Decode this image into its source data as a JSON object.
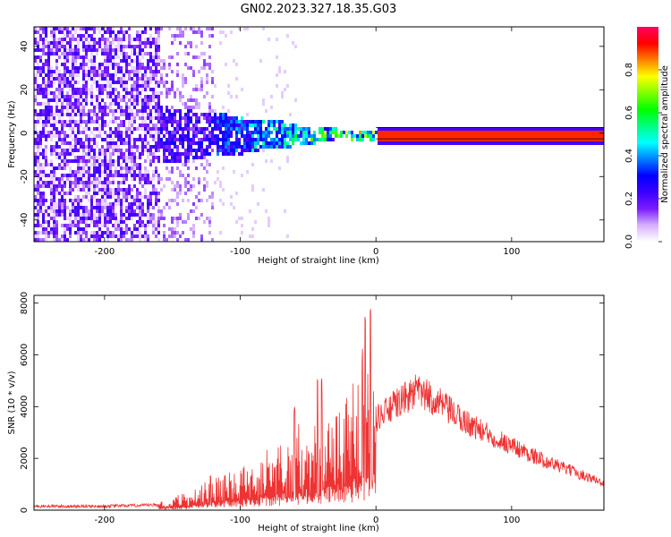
{
  "title": "GN02.2023.327.18.35.G03",
  "chart_data": [
    {
      "type": "heatmap",
      "xlabel": "Height of straight line (km)",
      "ylabel": "Frequency (Hz)",
      "xlim": [
        -252,
        168
      ],
      "ylim": [
        -50,
        49
      ],
      "xticks": [
        -200,
        -100,
        0,
        100
      ],
      "yticks": [
        -40,
        -20,
        0,
        20,
        40
      ],
      "colorbar": {
        "label": "Normalized spectral amplitude",
        "range": [
          0,
          1
        ],
        "ticks": [
          "0.0",
          "0.2",
          "0.4",
          "0.6",
          "0.8"
        ],
        "colormap": [
          "#ffffff",
          "#d6b0ff",
          "#7a1bff",
          "#3a00ff",
          "#0000ff",
          "#0080ff",
          "#00ffff",
          "#00ff80",
          "#00ff00",
          "#80ff00",
          "#ffff00",
          "#ff8000",
          "#ff0000",
          "#ff0060"
        ]
      },
      "signal": {
        "stable_line_start_km": 0,
        "stable_line_freq_hz": 0,
        "stable_line_amplitude": 0.9,
        "noisy_region_start_km": -252,
        "dense_noise_end_km": -160
      }
    },
    {
      "type": "line",
      "xlabel": "Height of straight line (km)",
      "ylabel": "SNR (10 * v/v)",
      "xlim": [
        -252,
        168
      ],
      "ylim": [
        0,
        8300
      ],
      "xticks": [
        -200,
        -100,
        0,
        100
      ],
      "yticks": [
        0,
        2000,
        4000,
        6000,
        8000
      ],
      "series": [
        {
          "name": "SNR",
          "color": "#ee3333",
          "envelope": [
            {
              "x": -252,
              "y": 150
            },
            {
              "x": -200,
              "y": 150
            },
            {
              "x": -160,
              "y": 200
            },
            {
              "x": -140,
              "y": 400
            },
            {
              "x": -120,
              "y": 800
            },
            {
              "x": -100,
              "y": 1000
            },
            {
              "x": -80,
              "y": 1400
            },
            {
              "x": -60,
              "y": 1800
            },
            {
              "x": -40,
              "y": 2300
            },
            {
              "x": -20,
              "y": 2900
            },
            {
              "x": -5,
              "y": 3400
            },
            {
              "x": 5,
              "y": 3700
            },
            {
              "x": 15,
              "y": 4100
            },
            {
              "x": 30,
              "y": 4600
            },
            {
              "x": 45,
              "y": 4200
            },
            {
              "x": 60,
              "y": 3600
            },
            {
              "x": 80,
              "y": 3000
            },
            {
              "x": 100,
              "y": 2500
            },
            {
              "x": 120,
              "y": 2000
            },
            {
              "x": 140,
              "y": 1600
            },
            {
              "x": 168,
              "y": 1050
            }
          ],
          "spikes": [
            {
              "x": -122,
              "y": 1400
            },
            {
              "x": -60,
              "y": 4100
            },
            {
              "x": -43,
              "y": 5400
            },
            {
              "x": -40,
              "y": 5100
            },
            {
              "x": -10,
              "y": 6300
            },
            {
              "x": -8,
              "y": 8100
            },
            {
              "x": -4,
              "y": 8300
            }
          ]
        }
      ]
    }
  ]
}
